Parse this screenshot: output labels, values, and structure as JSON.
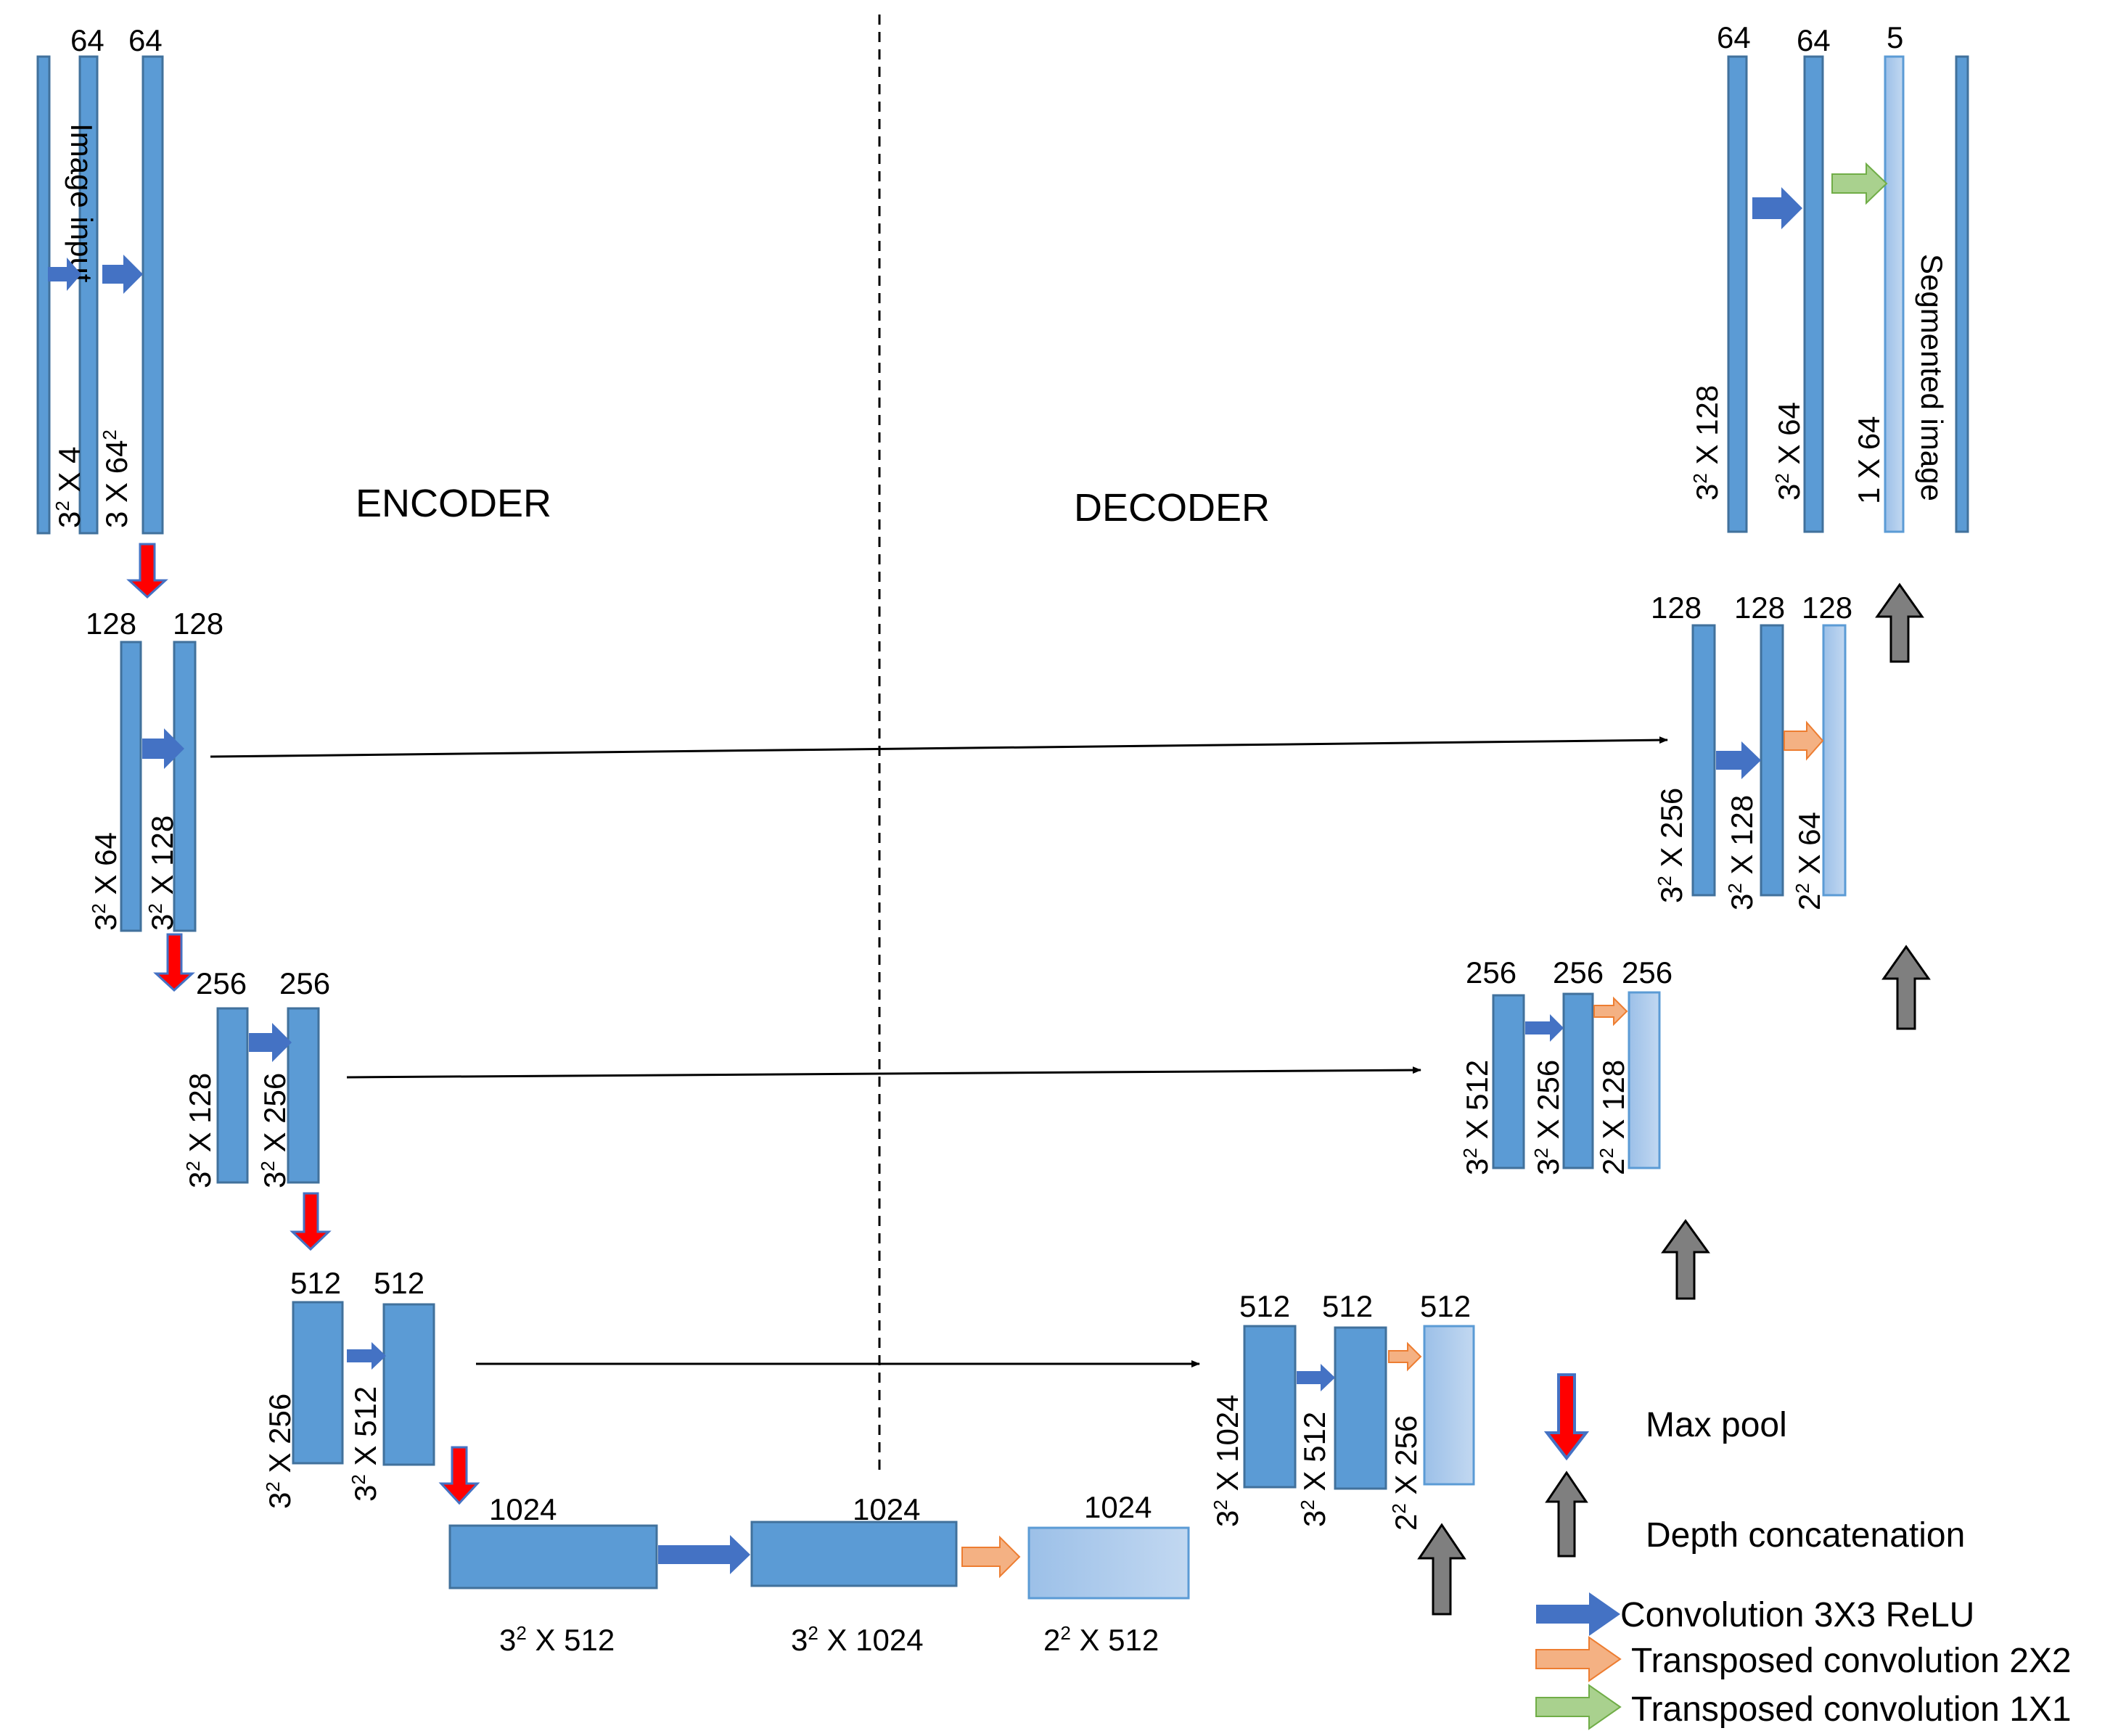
{
  "sections": {
    "encoder": "ENCODER",
    "decoder": "DECODER"
  },
  "colors": {
    "block": "#5b9bd5",
    "block_light": "#a9c8ea",
    "conv_arrow": "#4472c4",
    "transposed_arrow": "#f4b183",
    "transposed_1x1_arrow": "#a9d18e",
    "maxpool_arrow": "#ff0000",
    "concat_arrow": "#7f7f7f"
  },
  "encoder": {
    "l1": {
      "n1": "64",
      "n2": "64",
      "input_label": "Image input",
      "d1_base": "3",
      "d1_sup": "2",
      "d1_rest": " X 4",
      "d2_base": "3 X 64",
      "d2_sup": "2"
    },
    "l2": {
      "n1": "128",
      "n2": "128",
      "d1_base": "3",
      "d1_sup": "2",
      "d1_rest": " X 64",
      "d2_base": "3",
      "d2_sup": "2",
      "d2_rest": " X 128"
    },
    "l3": {
      "n1": "256",
      "n2": "256",
      "d1_base": "3",
      "d1_sup": "2",
      "d1_rest": " X 128",
      "d2_base": "3",
      "d2_sup": "2",
      "d2_rest": " X 256"
    },
    "l4": {
      "n1": "512",
      "n2": "512",
      "d1_base": "3",
      "d1_sup": "2",
      "d1_rest": " X 256",
      "d2_base": "3",
      "d2_sup": "2",
      "d2_rest": " X 512"
    }
  },
  "bottleneck": {
    "n1": "1024",
    "n2": "1024",
    "n3": "1024",
    "d1_base": "3",
    "d1_sup": "2",
    "d1_rest": " X 512",
    "d2_base": "3",
    "d2_sup": "2",
    "d2_rest": " X 1024",
    "d3_base": "2",
    "d3_sup": "2",
    "d3_rest": " X 512"
  },
  "decoder": {
    "l4": {
      "n1": "512",
      "n2": "512",
      "n3": "512",
      "d1_base": "3",
      "d1_sup": "2",
      "d1_rest": " X 1024",
      "d2_base": "3",
      "d2_sup": "2",
      "d2_rest": " X 512",
      "d3_base": "2",
      "d3_sup": "2",
      "d3_rest": " X 256"
    },
    "l3": {
      "n1": "256",
      "n2": "256",
      "n3": "256",
      "d1_base": "3",
      "d1_sup": "2",
      "d1_rest": " X 512",
      "d2_base": "3",
      "d2_sup": "2",
      "d2_rest": " X 256",
      "d3_base": "2",
      "d3_sup": "2",
      "d3_rest": " X 128"
    },
    "l2": {
      "n1": "128",
      "n2": "128",
      "n3": "128",
      "d1_base": "3",
      "d1_sup": "2",
      "d1_rest": " X 256",
      "d2_base": "3",
      "d2_sup": "2",
      "d2_rest": " X 128",
      "d3_base": "2",
      "d3_sup": "2",
      "d3_rest": " X 64"
    },
    "l1": {
      "n1": "64",
      "n2": "64",
      "n3": "5",
      "d1_base": "3",
      "d1_sup": "2",
      "d1_rest": " X 128",
      "d2_base": "3",
      "d2_sup": "2",
      "d2_rest": " X 64",
      "d3": "1 X 64",
      "output_label": "Segmented image"
    }
  },
  "legend": {
    "maxpool": "Max pool",
    "concat": "Depth concatenation",
    "conv": "Convolution 3X3 ReLU",
    "tconv2": "Transposed convolution 2X2",
    "tconv1": "Transposed convolution 1X1"
  }
}
